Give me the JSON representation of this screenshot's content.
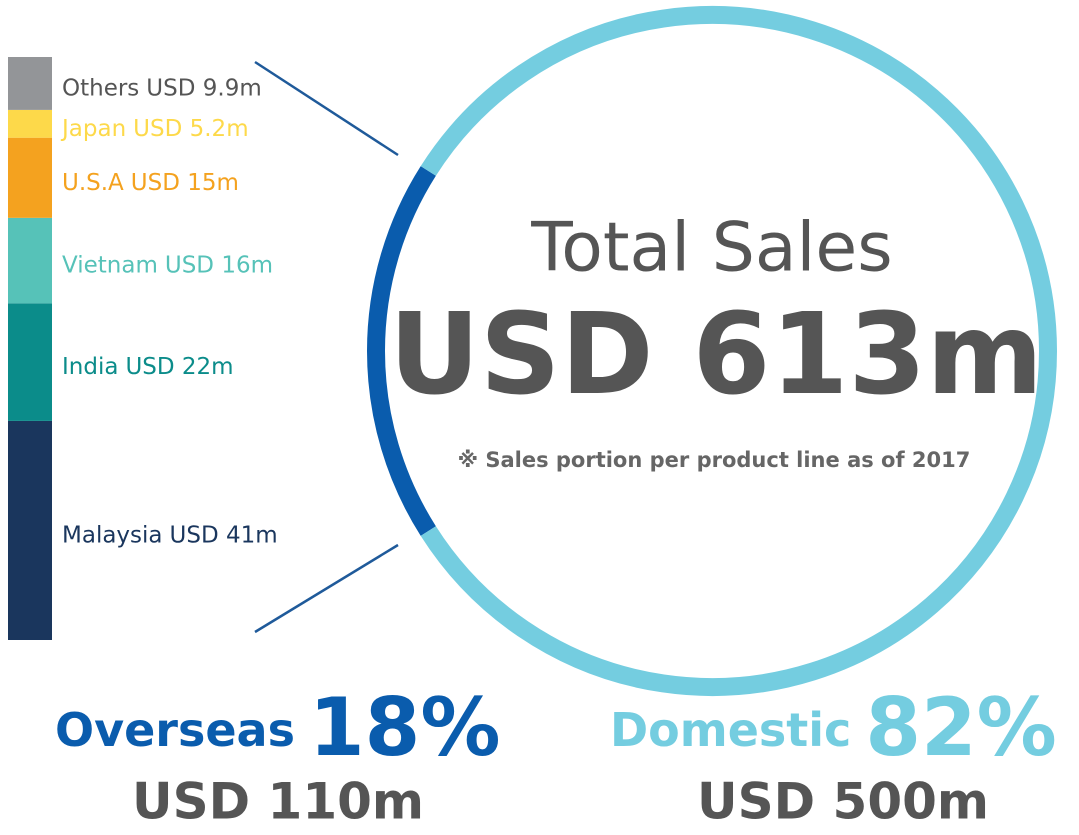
{
  "chart_data": [
    {
      "type": "pie",
      "title": "Total Sales",
      "subtitle": "USD 613m",
      "note": "※ Sales portion per product line as of 2017",
      "categories": [
        "Overseas",
        "Domestic"
      ],
      "values": [
        18,
        82
      ],
      "value_labels": [
        "18%",
        "82%"
      ],
      "amounts": [
        "USD 110m",
        "USD 500m"
      ],
      "colors": [
        "#0a5cad",
        "#74cde0"
      ]
    },
    {
      "type": "bar",
      "stacked": true,
      "categories": [
        "Others",
        "Japan",
        "U.S.A",
        "Vietnam",
        "India",
        "Malaysia"
      ],
      "values": [
        9.9,
        5.2,
        15,
        16,
        22,
        41
      ],
      "value_labels": [
        "USD 9.9m",
        "USD 5.2m",
        "USD 15m",
        "USD 16m",
        "USD 22m",
        "USD 41m"
      ],
      "colors": [
        "#939598",
        "#fdd94a",
        "#f4a21f",
        "#56c2b8",
        "#0b8c8a",
        "#1a365d"
      ]
    }
  ]
}
